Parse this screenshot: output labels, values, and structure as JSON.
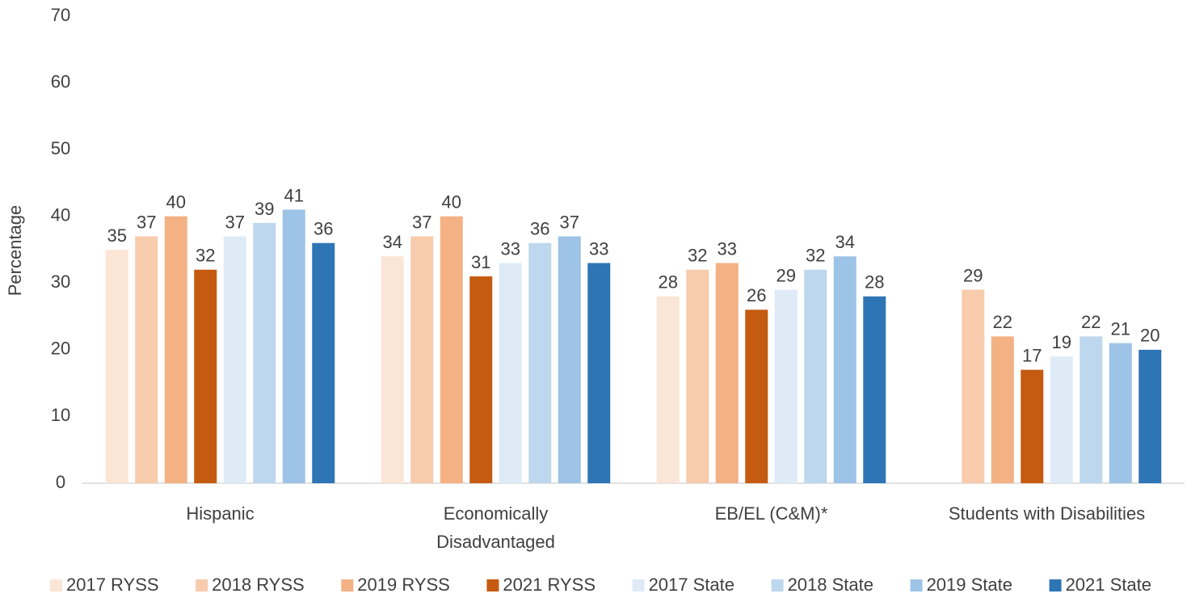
{
  "chart_data": {
    "type": "bar",
    "y_label": "Percentage",
    "categories": [
      "Hispanic",
      [
        "Economically",
        "Disadvantaged"
      ],
      "EB/EL (C&M)*",
      "Students with Disabilities"
    ],
    "series": [
      {
        "name": "2017 RYSS",
        "color": "#fbe5d6",
        "values": [
          35,
          34,
          28,
          null
        ]
      },
      {
        "name": "2018 RYSS",
        "color": "#f8cbad",
        "values": [
          37,
          37,
          32,
          29
        ]
      },
      {
        "name": "2019 RYSS",
        "color": "#f4b183",
        "values": [
          40,
          40,
          33,
          22
        ]
      },
      {
        "name": "2021 RYSS",
        "color": "#c55a11",
        "values": [
          32,
          31,
          26,
          17
        ]
      },
      {
        "name": "2017 State",
        "color": "#deebf7",
        "values": [
          37,
          33,
          29,
          19
        ]
      },
      {
        "name": "2018 State",
        "color": "#bdd7ee",
        "values": [
          39,
          36,
          32,
          22
        ]
      },
      {
        "name": "2019 State",
        "color": "#9dc3e6",
        "values": [
          41,
          37,
          34,
          21
        ]
      },
      {
        "name": "2021 State",
        "color": "#2e75b6",
        "values": [
          36,
          33,
          28,
          20
        ]
      }
    ],
    "ylim": [
      0,
      70
    ],
    "yticks": [
      0,
      10,
      20,
      30,
      40,
      50,
      60,
      70
    ],
    "grid": false,
    "legend": "bottom"
  }
}
